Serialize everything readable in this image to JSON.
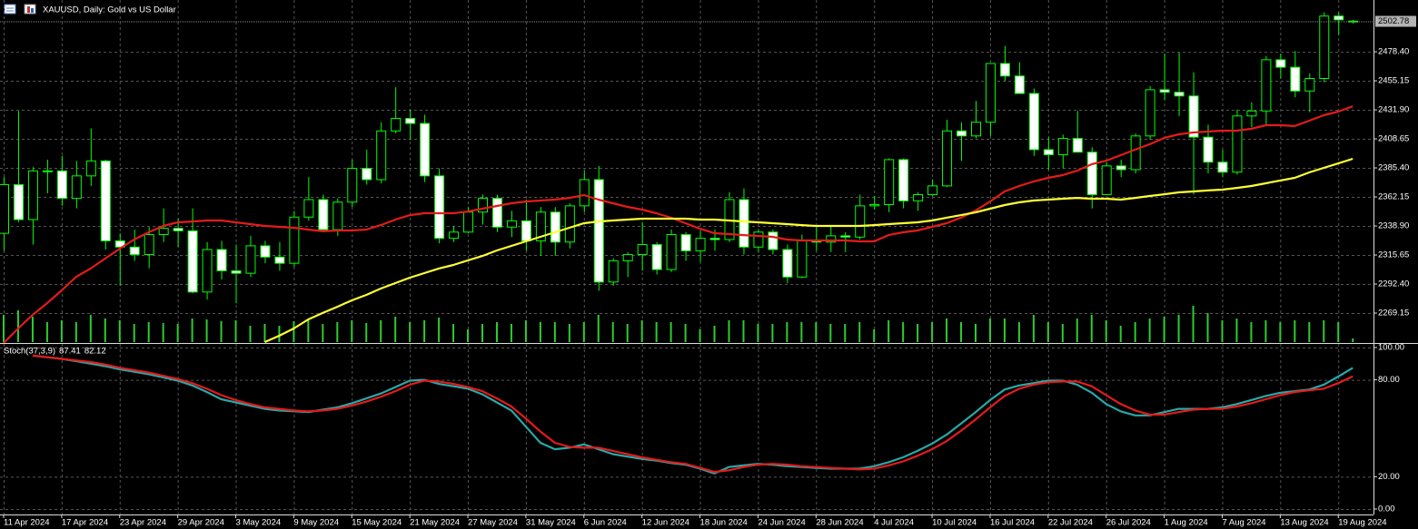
{
  "chart_data": [
    {
      "type": "candlestick",
      "title": "XAUUSD, Daily:  Gold vs US Dollar",
      "categories": [
        "11 Apr 2024",
        null,
        null,
        null,
        "17 Apr 2024",
        null,
        null,
        null,
        "23 Apr 2024",
        null,
        null,
        null,
        "29 Apr 2024",
        null,
        null,
        null,
        "3 May 2024",
        null,
        null,
        null,
        "9 May 2024",
        null,
        null,
        null,
        "15 May 2024",
        null,
        null,
        null,
        "21 May 2024",
        null,
        null,
        null,
        "27 May 2024",
        null,
        null,
        null,
        "31 May 2024",
        null,
        null,
        null,
        "6 Jun 2024",
        null,
        null,
        null,
        "12 Jun 2024",
        null,
        null,
        null,
        "18 Jun 2024",
        null,
        null,
        null,
        "24 Jun 2024",
        null,
        null,
        null,
        "28 Jun 2024",
        null,
        null,
        null,
        "4 Jul 2024",
        null,
        null,
        null,
        "10 Jul 2024",
        null,
        null,
        null,
        "16 Jul 2024",
        null,
        null,
        null,
        "22 Jul 2024",
        null,
        null,
        null,
        "26 Jul 2024",
        null,
        null,
        null,
        "1 Aug 2024",
        null,
        null,
        null,
        "7 Aug 2024",
        null,
        null,
        null,
        "13 Aug 2024",
        null,
        null,
        null,
        "19 Aug 2024",
        null
      ],
      "open": [
        2333,
        2372,
        2344,
        2383,
        2383,
        2361,
        2379,
        2391,
        2327,
        2322,
        2316,
        2332,
        2337,
        2335,
        2286,
        2320,
        2303,
        2301,
        2323,
        2314,
        2309,
        2346,
        2360,
        2336,
        2358,
        2385,
        2376,
        2415,
        2425,
        2421,
        2379,
        2329,
        2334,
        2350,
        2361,
        2338,
        2343,
        2327,
        2350,
        2326,
        2355,
        2376,
        2294,
        2311,
        2316,
        2324,
        2304,
        2332,
        2319,
        2329,
        2328,
        2360,
        2322,
        2334,
        2320,
        2298,
        2327,
        2326,
        2331,
        2330,
        2355,
        2356,
        2392,
        2359,
        2364,
        2371,
        2415,
        2411,
        2422,
        2469,
        2459,
        2445,
        2400,
        2396,
        2409,
        2398,
        2364,
        2387,
        2384,
        2411,
        2448,
        2446,
        2443,
        2410,
        2390,
        2382,
        2427,
        2431,
        2472,
        2466,
        2447,
        2457,
        2507,
        2503
      ],
      "high": [
        2378,
        2431,
        2386,
        2392,
        2395,
        2391,
        2417,
        2392,
        2333,
        2336,
        2338,
        2353,
        2345,
        2353,
        2326,
        2327,
        2324,
        2331,
        2327,
        2326,
        2351,
        2378,
        2364,
        2361,
        2392,
        2400,
        2422,
        2450,
        2432,
        2428,
        2385,
        2339,
        2354,
        2364,
        2364,
        2351,
        2360,
        2354,
        2354,
        2357,
        2383,
        2387,
        2313,
        2318,
        2342,
        2326,
        2336,
        2334,
        2335,
        2336,
        2366,
        2369,
        2336,
        2336,
        2324,
        2332,
        2338,
        2339,
        2334,
        2364,
        2363,
        2393,
        2393,
        2366,
        2376,
        2424,
        2422,
        2439,
        2469,
        2483,
        2470,
        2449,
        2410,
        2412,
        2431,
        2402,
        2390,
        2392,
        2413,
        2451,
        2477,
        2478,
        2462,
        2420,
        2400,
        2432,
        2438,
        2475,
        2477,
        2479,
        2461,
        2510,
        2510,
        2504
      ],
      "low": [
        2319,
        2342,
        2324,
        2365,
        2355,
        2353,
        2371,
        2320,
        2291,
        2311,
        2305,
        2326,
        2322,
        2285,
        2280,
        2296,
        2277,
        2298,
        2309,
        2303,
        2306,
        2343,
        2334,
        2331,
        2354,
        2372,
        2373,
        2413,
        2408,
        2374,
        2325,
        2326,
        2333,
        2340,
        2334,
        2330,
        2319,
        2315,
        2315,
        2321,
        2350,
        2287,
        2291,
        2298,
        2303,
        2300,
        2302,
        2311,
        2310,
        2319,
        2326,
        2316,
        2318,
        2316,
        2293,
        2297,
        2319,
        2318,
        2318,
        2328,
        2352,
        2350,
        2353,
        2351,
        2363,
        2370,
        2391,
        2409,
        2411,
        2455,
        2445,
        2395,
        2384,
        2385,
        2398,
        2353,
        2364,
        2378,
        2381,
        2408,
        2440,
        2427,
        2364,
        2381,
        2378,
        2380,
        2418,
        2419,
        2457,
        2442,
        2430,
        2454,
        2492,
        2501
      ],
      "close": [
        2372,
        2344,
        2383,
        2383,
        2361,
        2379,
        2391,
        2327,
        2322,
        2316,
        2332,
        2337,
        2335,
        2286,
        2320,
        2303,
        2301,
        2323,
        2314,
        2309,
        2346,
        2360,
        2336,
        2358,
        2385,
        2376,
        2415,
        2425,
        2421,
        2379,
        2329,
        2334,
        2350,
        2361,
        2338,
        2343,
        2327,
        2350,
        2326,
        2355,
        2376,
        2294,
        2311,
        2316,
        2324,
        2304,
        2332,
        2319,
        2329,
        2328,
        2360,
        2322,
        2334,
        2320,
        2298,
        2327,
        2326,
        2331,
        2330,
        2355,
        2356,
        2392,
        2359,
        2364,
        2371,
        2415,
        2411,
        2422,
        2469,
        2459,
        2445,
        2400,
        2396,
        2409,
        2398,
        2364,
        2387,
        2384,
        2411,
        2448,
        2446,
        2443,
        2410,
        2390,
        2382,
        2427,
        2431,
        2472,
        2466,
        2447,
        2457,
        2507,
        2504,
        2502.78
      ],
      "volume": [
        30,
        35,
        28,
        22,
        24,
        22,
        30,
        26,
        24,
        20,
        22,
        21,
        20,
        26,
        25,
        23,
        24,
        18,
        20,
        18,
        23,
        24,
        20,
        22,
        24,
        21,
        24,
        28,
        22,
        24,
        27,
        20,
        14,
        20,
        22,
        20,
        24,
        22,
        22,
        20,
        22,
        30,
        22,
        20,
        24,
        22,
        22,
        20,
        14,
        18,
        24,
        24,
        20,
        20,
        22,
        22,
        22,
        20,
        20,
        22,
        14,
        24,
        22,
        20,
        22,
        26,
        22,
        20,
        26,
        26,
        22,
        30,
        22,
        20,
        26,
        30,
        24,
        18,
        22,
        26,
        28,
        30,
        40,
        32,
        24,
        26,
        22,
        24,
        22,
        24,
        22,
        24,
        22,
        4
      ],
      "volume_color": "#2ecc2e",
      "bull_color": "#000000",
      "bear_color": "#ffffff",
      "candle_outline": "#00ff00",
      "series": [
        {
          "color": "#e41b1b",
          "values": [
            2245.2,
            2256.8,
            2267.7,
            2277.1,
            2287.3,
            2298.2,
            2304.8,
            2312.8,
            2320.7,
            2328.0,
            2333.8,
            2338.9,
            2341.8,
            2342.5,
            2343.3,
            2343.3,
            2341.8,
            2340.4,
            2338.9,
            2338.2,
            2337.5,
            2336.0,
            2334.6,
            2335.3,
            2335.3,
            2336.0,
            2339.6,
            2344.0,
            2347.6,
            2349.1,
            2349.1,
            2349.1,
            2350.5,
            2352.7,
            2354.9,
            2357.1,
            2358.5,
            2359.3,
            2360.0,
            2361.4,
            2363.6,
            2360.0,
            2357.1,
            2354.2,
            2352.0,
            2349.1,
            2345.5,
            2341.1,
            2336.7,
            2333.1,
            2332.4,
            2331.6,
            2330.9,
            2330.2,
            2328.0,
            2327.3,
            2327.3,
            2327.3,
            2327.3,
            2326.6,
            2326.6,
            2331.6,
            2333.8,
            2335.3,
            2338.2,
            2341.1,
            2345.5,
            2351.3,
            2358.5,
            2366.5,
            2370.9,
            2374.5,
            2377.4,
            2379.6,
            2383.2,
            2388.3,
            2391.2,
            2395.6,
            2400.0,
            2404.3,
            2409.4,
            2412.3,
            2413.8,
            2414.5,
            2415.2,
            2415.2,
            2416.7,
            2419.6,
            2419.6,
            2418.9,
            2423.2,
            2427.6,
            2430.5,
            2434.8
          ]
        },
        {
          "color": "#ffff33",
          "values": [
            null,
            null,
            null,
            null,
            null,
            null,
            null,
            null,
            null,
            null,
            null,
            null,
            null,
            null,
            null,
            null,
            null,
            null,
            2245.9,
            2251.0,
            2256.8,
            2264.1,
            2269.2,
            2274.2,
            2279.3,
            2283.7,
            2288.8,
            2293.1,
            2297.5,
            2301.1,
            2304.8,
            2307.7,
            2311.3,
            2314.9,
            2319.3,
            2322.9,
            2326.6,
            2330.2,
            2333.8,
            2337.5,
            2341.1,
            2342.5,
            2343.3,
            2344.0,
            2344.7,
            2344.7,
            2344.7,
            2344.7,
            2344.0,
            2344.0,
            2343.3,
            2342.5,
            2341.8,
            2341.1,
            2340.4,
            2339.6,
            2338.9,
            2338.9,
            2338.9,
            2338.9,
            2339.6,
            2340.4,
            2341.1,
            2341.8,
            2343.3,
            2345.5,
            2347.6,
            2349.8,
            2352.7,
            2355.6,
            2357.8,
            2359.3,
            2360.0,
            2360.7,
            2361.4,
            2360.7,
            2360.7,
            2360.0,
            2361.4,
            2362.9,
            2364.3,
            2365.8,
            2366.5,
            2367.3,
            2368.0,
            2369.4,
            2370.9,
            2373.1,
            2375.3,
            2377.4,
            2381.8,
            2385.4,
            2389.0,
            2392.7
          ]
        }
      ],
      "ylim": [
        2245.9,
        2519.87
      ],
      "yticks": [
        2269.15,
        {
          "value": 2292.4,
          "label": "2292.40"
        },
        2315.65,
        {
          "value": 2338.9,
          "label": "2338.90"
        },
        2362.15,
        {
          "value": 2385.4,
          "label": "2385.40"
        },
        2408.65,
        {
          "value": 2431.9,
          "label": "2431.90"
        },
        2455.15,
        {
          "value": 2478.4,
          "label": "2478.40"
        }
      ],
      "grid": true
    },
    {
      "type": "line",
      "title": "Stoch(37,3,9)",
      "series": [
        {
          "color": "#2aa8a8",
          "values": [
            null,
            null,
            95,
            94,
            93,
            91.5,
            90,
            88.5,
            86.5,
            85,
            83.5,
            81.5,
            79.5,
            76.5,
            72.5,
            68,
            66,
            64,
            62,
            61,
            60.5,
            60,
            61.5,
            63,
            65.5,
            68.5,
            71.5,
            75.5,
            79.5,
            80,
            77.5,
            76,
            74.5,
            71,
            66,
            61,
            51,
            41,
            37,
            38,
            40,
            37,
            34,
            32.5,
            31,
            30,
            28.5,
            27.5,
            25,
            22,
            26,
            27,
            28,
            27.5,
            26.5,
            26,
            25.5,
            25,
            25,
            25,
            26.5,
            29,
            32,
            36,
            40.5,
            46,
            53,
            60,
            67.5,
            74,
            76.5,
            78,
            79.5,
            79.5,
            77,
            72,
            65,
            60.5,
            58,
            58,
            60,
            62,
            62,
            62,
            63,
            65,
            67.5,
            70,
            72,
            73,
            74,
            77,
            82,
            87.41
          ]
        },
        {
          "color": "#e41b1b",
          "values": [
            null,
            null,
            95,
            94,
            93,
            92,
            91,
            89.5,
            87.5,
            86,
            84.5,
            82.5,
            80.5,
            78,
            74.5,
            70.5,
            67.5,
            65,
            63,
            62,
            61,
            60.5,
            61,
            62,
            64,
            66.5,
            69.5,
            73,
            77,
            79.5,
            79,
            77.5,
            75.5,
            73,
            68.5,
            63.5,
            56,
            48,
            41,
            38.5,
            38,
            38,
            36,
            34,
            32,
            30.5,
            29,
            28,
            25.5,
            23,
            24,
            26,
            27.5,
            28,
            27.5,
            26.5,
            26,
            25.5,
            25,
            24.5,
            25,
            27,
            29.5,
            33,
            37,
            42,
            48.5,
            55.5,
            63,
            70,
            74.5,
            77,
            78.5,
            79,
            79,
            76,
            70.5,
            65,
            61,
            58.5,
            58.5,
            60,
            61.5,
            62,
            62,
            63.5,
            65.5,
            68,
            70.5,
            72.5,
            73.5,
            74.5,
            78,
            82.12
          ]
        }
      ],
      "ylim": [
        -3.37,
        102.25
      ],
      "yticks": [
        {
          "value": 0,
          "label": "0.00"
        },
        {
          "value": 20,
          "label": "20.00"
        },
        {
          "value": 80,
          "label": "80.00"
        },
        {
          "value": 100,
          "label": "100.00"
        }
      ],
      "grid": true
    }
  ]
}
